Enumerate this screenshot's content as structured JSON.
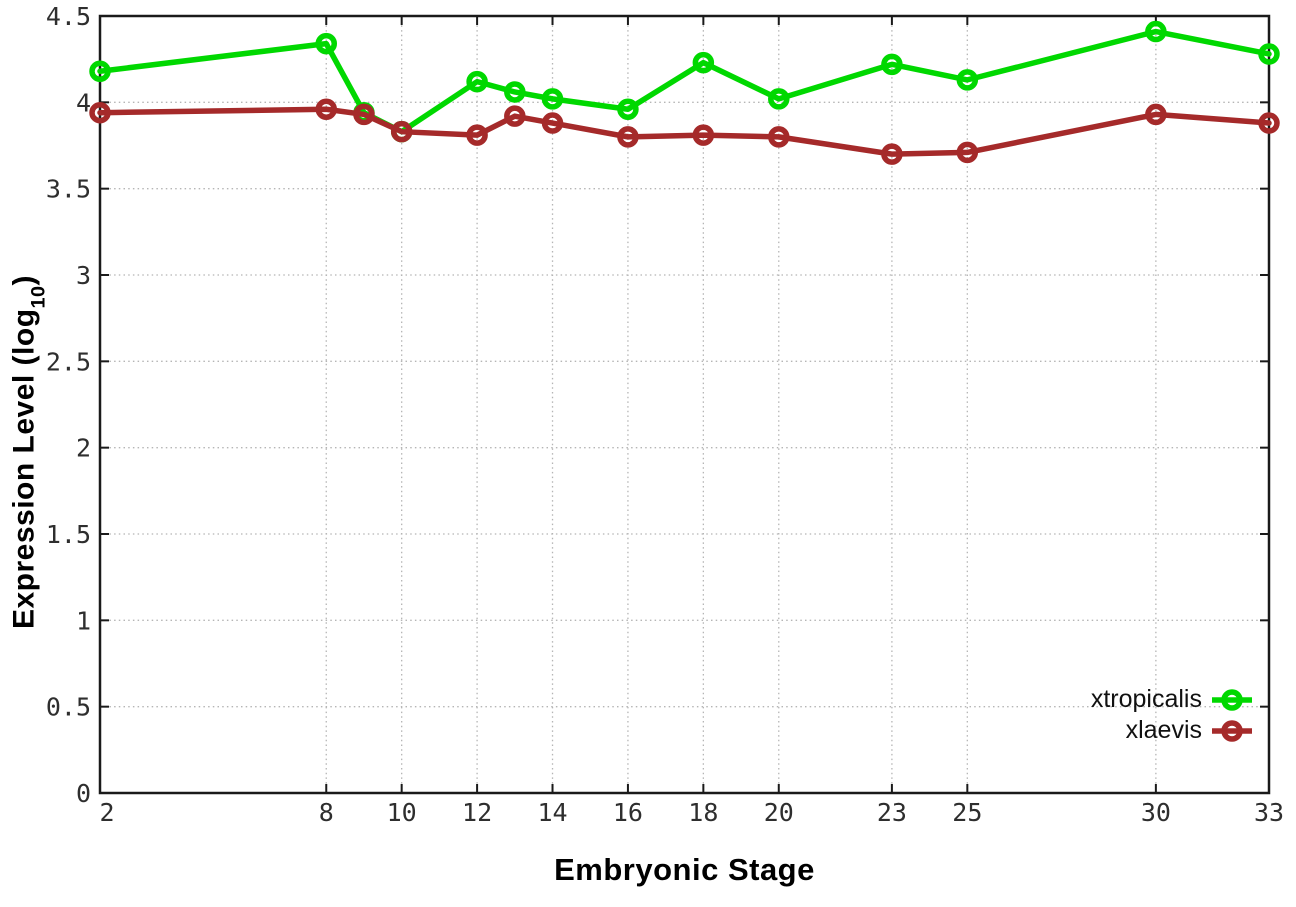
{
  "chart_data": {
    "type": "line",
    "title": "",
    "xlabel": "Embryonic Stage",
    "ylabel": "Expression Level (log10)",
    "ylabel_prefix": "Expression Level (log",
    "ylabel_sub": "10",
    "ylabel_suffix": ")",
    "x": [
      2,
      8,
      9,
      10,
      12,
      13,
      14,
      16,
      18,
      20,
      23,
      25,
      30,
      33
    ],
    "series": [
      {
        "name": "xtropicalis",
        "color": "#00d800",
        "marker": "open-circle",
        "values": [
          4.18,
          4.34,
          3.94,
          3.83,
          4.12,
          4.06,
          4.02,
          3.96,
          4.23,
          4.02,
          4.22,
          4.13,
          4.41,
          4.28
        ]
      },
      {
        "name": "xlaevis",
        "color": "#a52a2a",
        "marker": "open-circle",
        "values": [
          3.94,
          3.96,
          3.93,
          3.83,
          3.81,
          3.92,
          3.88,
          3.8,
          3.81,
          3.8,
          3.7,
          3.71,
          3.93,
          3.88
        ]
      }
    ],
    "xlim": [
      2,
      33
    ],
    "ylim": [
      0,
      4.5
    ],
    "xticks": [
      2,
      8,
      10,
      12,
      14,
      16,
      18,
      20,
      23,
      25,
      30,
      33
    ],
    "yticks": [
      0,
      0.5,
      1,
      1.5,
      2,
      2.5,
      3,
      3.5,
      4,
      4.5
    ],
    "ytick_labels": [
      "0",
      "0.5",
      "1",
      "1.5",
      "2",
      "2.5",
      "3",
      "3.5",
      "4",
      "4.5"
    ],
    "grid": true,
    "grid_style": "dotted",
    "legend_position": "inside-bottom-right",
    "colors": {
      "axis": "#1a1a1a",
      "grid": "#b5b5b5",
      "tick_label": "#2e2e2e",
      "background": "#ffffff"
    }
  }
}
